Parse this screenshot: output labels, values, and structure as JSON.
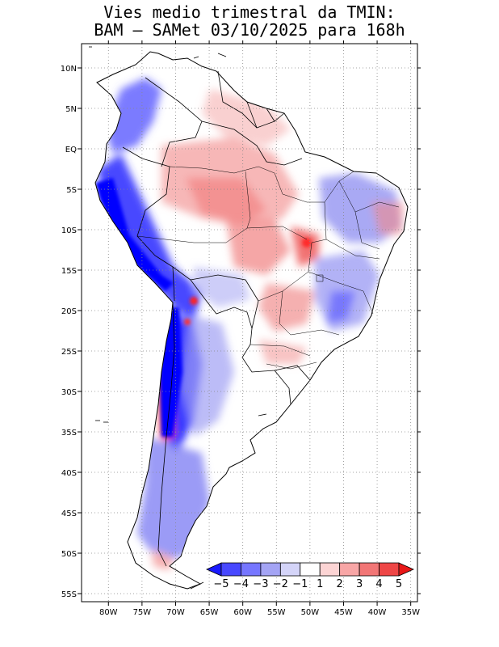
{
  "figure": {
    "title_line1": "Vies medio trimestral da TMIN:",
    "title_line2": "BAM – SAMet 03/10/2025  para 168h"
  },
  "map": {
    "region": "South America",
    "lon_range": [
      -84,
      -34
    ],
    "lat_range": [
      -56,
      13
    ],
    "lon_ticks": [
      {
        "value": -80,
        "label": "80W"
      },
      {
        "value": -75,
        "label": "75W"
      },
      {
        "value": -70,
        "label": "70W"
      },
      {
        "value": -65,
        "label": "65W"
      },
      {
        "value": -60,
        "label": "60W"
      },
      {
        "value": -55,
        "label": "55W"
      },
      {
        "value": -50,
        "label": "50W"
      },
      {
        "value": -45,
        "label": "45W"
      },
      {
        "value": -40,
        "label": "40W"
      },
      {
        "value": -35,
        "label": "35W"
      }
    ],
    "lat_ticks": [
      {
        "value": 10,
        "label": "10N"
      },
      {
        "value": 5,
        "label": "5N"
      },
      {
        "value": 0,
        "label": "EQ"
      },
      {
        "value": -5,
        "label": "5S"
      },
      {
        "value": -10,
        "label": "10S"
      },
      {
        "value": -15,
        "label": "15S"
      },
      {
        "value": -20,
        "label": "20S"
      },
      {
        "value": -25,
        "label": "25S"
      },
      {
        "value": -30,
        "label": "30S"
      },
      {
        "value": -35,
        "label": "35S"
      },
      {
        "value": -40,
        "label": "40S"
      },
      {
        "value": -45,
        "label": "45S"
      },
      {
        "value": -50,
        "label": "50S"
      },
      {
        "value": -55,
        "label": "55S"
      }
    ],
    "grid": "dotted"
  },
  "colorbar": {
    "labels": [
      "−5",
      "−4",
      "−3",
      "−2",
      "−1",
      "1",
      "2",
      "3",
      "4",
      "5"
    ],
    "colors": [
      "#1a1aff",
      "#4848ff",
      "#7676ff",
      "#a4a4f4",
      "#d4d4f8",
      "#ffffff",
      "#fcd4d4",
      "#f8a6a6",
      "#f27676",
      "#ee4646",
      "#e81818"
    ]
  }
}
